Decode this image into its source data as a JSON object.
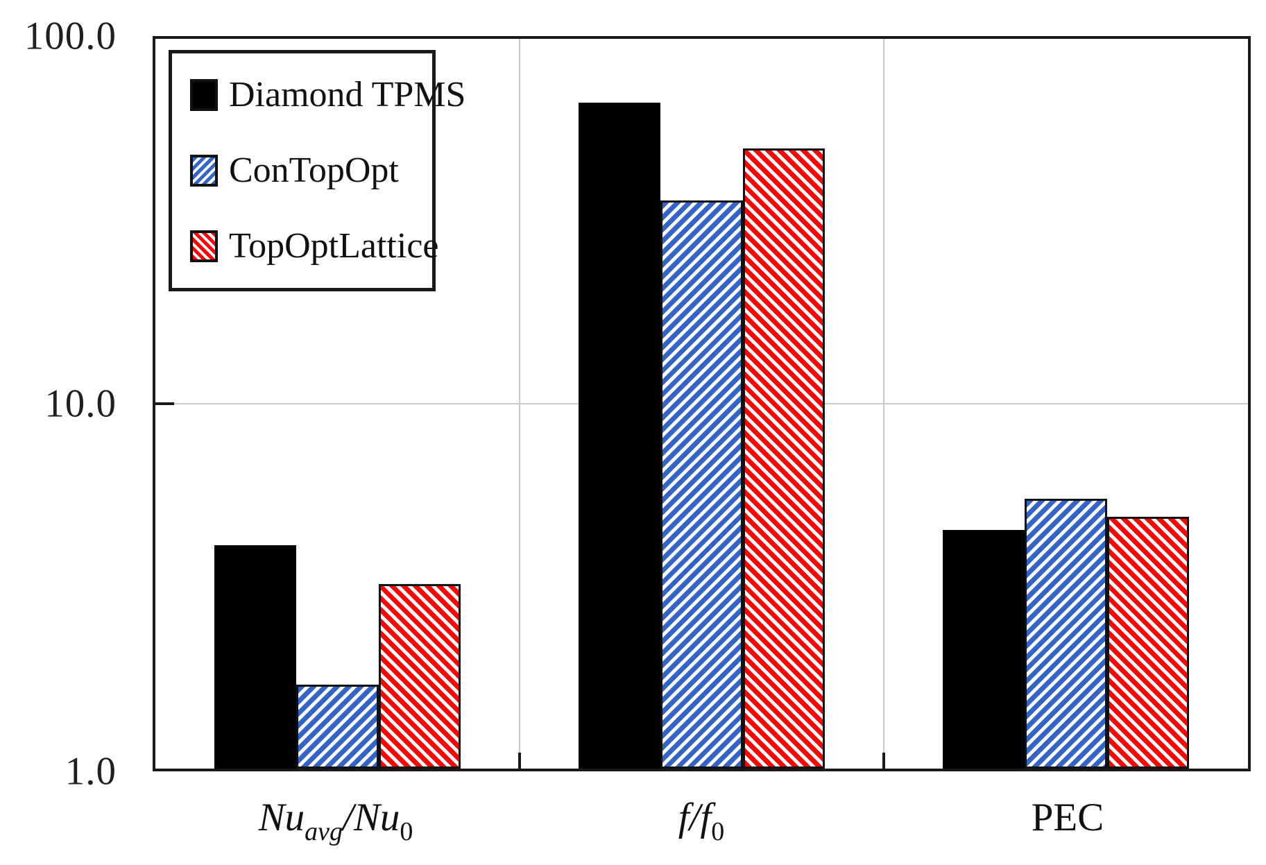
{
  "colors": {
    "series_black": "#000000",
    "series_blue": "#3565c4",
    "series_red": "#f50808",
    "gridline": "#c9c9c9",
    "axis": "#1a1a1a",
    "background": "#ffffff"
  },
  "legend": {
    "items": [
      {
        "label": "Diamond TPMS",
        "swatch": "solid-black"
      },
      {
        "label": "ConTopOpt",
        "swatch": "blue-forward-diagonal-hatch"
      },
      {
        "label": "TopOptLattice",
        "swatch": "red-backward-diagonal-hatch"
      }
    ]
  },
  "chart_data": {
    "type": "bar",
    "scale": "log10",
    "ylim": [
      1,
      100
    ],
    "y_ticks": [
      "1.0",
      "10.0",
      "100.0"
    ],
    "grid": {
      "horizontal_at": [
        10
      ],
      "vertical": "category-separators",
      "legend_position": "top-left-inside"
    },
    "categories": [
      "Nu_avg/Nu_0",
      "f/f_0",
      "PEC"
    ],
    "series": [
      {
        "name": "Diamond TPMS",
        "values": [
          4.1,
          67,
          4.5
        ]
      },
      {
        "name": "ConTopOpt",
        "values": [
          1.7,
          36,
          5.5
        ]
      },
      {
        "name": "TopOptLattice",
        "values": [
          3.2,
          50,
          4.9
        ]
      }
    ],
    "x_label_1": {
      "a": "Nu",
      "b": "avg",
      "c": "/",
      "d": "Nu",
      "e": "0"
    },
    "x_label_2": {
      "a": "f",
      "c": "/",
      "d": "f",
      "e": "0"
    },
    "x_label_3": {
      "a": "PEC"
    }
  }
}
